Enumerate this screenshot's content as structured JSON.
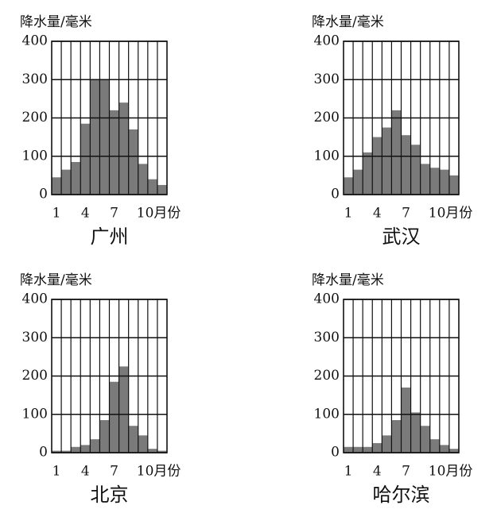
{
  "chart_data": [
    {
      "type": "bar",
      "title": "广州",
      "y_label": "降水量/毫米",
      "categories": [
        "1",
        null,
        null,
        "4",
        null,
        null,
        "7",
        null,
        null,
        "10月份",
        null,
        null
      ],
      "values": [
        45,
        65,
        85,
        185,
        300,
        300,
        220,
        240,
        170,
        80,
        40,
        25
      ],
      "color": "#7a7a7a",
      "ylim": [
        0,
        400
      ],
      "yticks": [
        0,
        100,
        200,
        300,
        400
      ],
      "grid": true
    },
    {
      "type": "bar",
      "title": "武汉",
      "y_label": "降水量/毫米",
      "categories": [
        "1",
        null,
        null,
        "4",
        null,
        null,
        "7",
        null,
        null,
        "10月份",
        null,
        null
      ],
      "values": [
        45,
        65,
        110,
        150,
        175,
        220,
        155,
        130,
        80,
        70,
        65,
        50
      ],
      "color": "#7a7a7a",
      "ylim": [
        0,
        400
      ],
      "yticks": [
        0,
        100,
        200,
        300,
        400
      ],
      "grid": true
    },
    {
      "type": "bar",
      "title": "北京",
      "y_label": "降水量/毫米",
      "categories": [
        "1",
        null,
        null,
        "4",
        null,
        null,
        "7",
        null,
        null,
        "10月份",
        null,
        null
      ],
      "values": [
        5,
        5,
        15,
        20,
        35,
        85,
        185,
        225,
        70,
        45,
        10,
        5
      ],
      "color": "#7a7a7a",
      "ylim": [
        0,
        400
      ],
      "yticks": [
        0,
        100,
        200,
        300,
        400
      ],
      "grid": true
    },
    {
      "type": "bar",
      "title": "哈尔滨",
      "y_label": "降水量/毫米",
      "categories": [
        "1",
        null,
        null,
        "4",
        null,
        null,
        "7",
        null,
        null,
        "10月份",
        null,
        null
      ],
      "values": [
        15,
        15,
        15,
        25,
        45,
        85,
        170,
        105,
        70,
        35,
        20,
        10
      ],
      "color": "#7a7a7a",
      "ylim": [
        0,
        400
      ],
      "yticks": [
        0,
        100,
        200,
        300,
        400
      ],
      "grid": true
    }
  ]
}
